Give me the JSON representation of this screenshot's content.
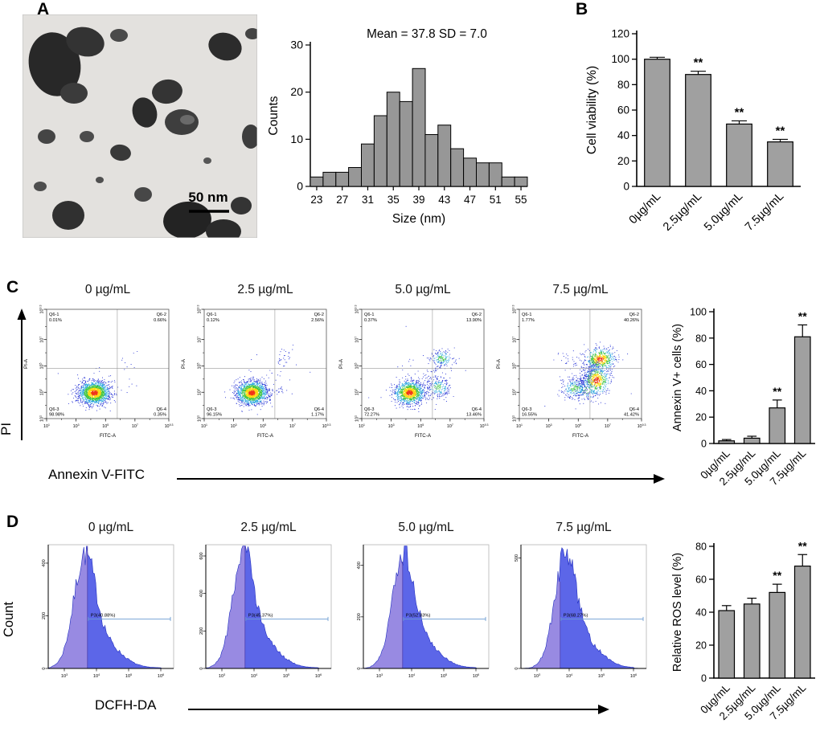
{
  "figure": {
    "panel_labels": [
      "A",
      "B",
      "C",
      "D"
    ],
    "tem_scale_bar": "50 nm",
    "concentrations": [
      "0µg/mL",
      "2.5µg/mL",
      "5.0µg/mL",
      "7.5µg/mL"
    ]
  },
  "chart_data": [
    {
      "id": "size-distribution-histogram",
      "type": "bar",
      "title": "Mean = 37.8  SD = 7.0",
      "xlabel": "Size (nm)",
      "ylabel": "Counts",
      "categories": [
        23,
        25,
        27,
        29,
        31,
        33,
        35,
        37,
        39,
        41,
        43,
        45,
        47,
        49,
        51,
        53,
        55
      ],
      "values": [
        2,
        3,
        3,
        4,
        9,
        15,
        20,
        18,
        25,
        11,
        13,
        8,
        6,
        5,
        5,
        2,
        2
      ],
      "xtick_labels": [
        23,
        27,
        31,
        35,
        39,
        43,
        47,
        51,
        55
      ],
      "ylim": [
        0,
        30
      ],
      "yticks": [
        0,
        10,
        20,
        30
      ],
      "bar_color": "#979797"
    },
    {
      "id": "cell-viability",
      "type": "bar",
      "ylabel": "Cell viability (%)",
      "categories": [
        "0µg/mL",
        "2.5µg/mL",
        "5.0µg/mL",
        "7.5µg/mL"
      ],
      "values": [
        100,
        88,
        49,
        35
      ],
      "errors": [
        1.5,
        2.5,
        2.5,
        2
      ],
      "significance": [
        "",
        "**",
        "**",
        "**"
      ],
      "ylim": [
        0,
        120
      ],
      "yticks": [
        0,
        20,
        40,
        60,
        80,
        100,
        120
      ],
      "bar_color": "#a0a0a0"
    },
    {
      "id": "annexin-pi-flow-quadrants",
      "type": "scatter",
      "xlabel_big": "Annexin V-FITC",
      "ylabel_big": "PI",
      "plot_xlabel": "FITC-A",
      "plot_ylabel": "PI-A",
      "axis_decades": [
        1,
        9.3
      ],
      "tick_exponents": [
        "1",
        "3",
        "5",
        "7",
        "9.3"
      ],
      "quadrant_split_x": 5.8,
      "quadrant_split_y": 4.8,
      "plots": [
        {
          "title": "0 µg/mL",
          "quadrants": [
            {
              "name": "Q6-1",
              "pct": "0.01%"
            },
            {
              "name": "Q6-2",
              "pct": "0.66%"
            },
            {
              "name": "Q6-3",
              "pct": "98.98%"
            },
            {
              "name": "Q6-4",
              "pct": "0.35%"
            }
          ]
        },
        {
          "title": "2.5 µg/mL",
          "quadrants": [
            {
              "name": "Q6-1",
              "pct": "0.12%"
            },
            {
              "name": "Q6-2",
              "pct": "2.56%"
            },
            {
              "name": "Q6-3",
              "pct": "96.15%"
            },
            {
              "name": "Q6-4",
              "pct": "1.17%"
            }
          ]
        },
        {
          "title": "5.0 µg/mL",
          "quadrants": [
            {
              "name": "Q6-1",
              "pct": "0.37%"
            },
            {
              "name": "Q6-2",
              "pct": "13.90%"
            },
            {
              "name": "Q6-3",
              "pct": "72.27%"
            },
            {
              "name": "Q6-4",
              "pct": "13.46%"
            }
          ]
        },
        {
          "title": "7.5 µg/mL",
          "quadrants": [
            {
              "name": "Q6-1",
              "pct": "1.77%"
            },
            {
              "name": "Q6-2",
              "pct": "40.26%"
            },
            {
              "name": "Q6-3",
              "pct": "16.55%"
            },
            {
              "name": "Q6-4",
              "pct": "41.42%"
            }
          ]
        }
      ]
    },
    {
      "id": "annexin-positive-cells",
      "type": "bar",
      "ylabel": "Annexin V+ cells (%)",
      "categories": [
        "0µg/mL",
        "2.5µg/mL",
        "5.0µg/mL",
        "7.5µg/mL"
      ],
      "values": [
        2,
        4,
        27,
        81
      ],
      "errors": [
        1,
        1.5,
        6,
        9
      ],
      "significance": [
        "",
        "",
        "**",
        "**"
      ],
      "ylim": [
        0,
        100
      ],
      "yticks": [
        0,
        20,
        40,
        60,
        80,
        100
      ],
      "bar_color": "#a0a0a0"
    },
    {
      "id": "dcfh-da-ros-histograms",
      "type": "area",
      "xlabel_big": "DCFH-DA",
      "ylabel_big": "Count",
      "axis_decades": [
        2.5,
        6.4
      ],
      "xtick_exponents": [
        3,
        4,
        5,
        6
      ],
      "plots": [
        {
          "title": "0 µg/mL",
          "gate_label": "P3(40.88%)",
          "gate_pct": 40.88,
          "yticks": [
            0,
            200,
            400
          ],
          "ymax": 470,
          "peak": 430
        },
        {
          "title": "2.5 µg/mL",
          "gate_label": "P3(45.37%)",
          "gate_pct": 45.37,
          "yticks": [
            0,
            200,
            400,
            600
          ],
          "ymax": 660,
          "peak": 610
        },
        {
          "title": "5.0 µg/mL",
          "gate_label": "P3(52.83%)",
          "gate_pct": 52.83,
          "yticks": [
            0,
            200,
            400
          ],
          "ymax": 480,
          "peak": 445
        },
        {
          "title": "7.5 µg/mL",
          "gate_label": "P3(68.27%)",
          "gate_pct": 68.27,
          "yticks": [
            0,
            500
          ],
          "ymax": 560,
          "peak": 515
        }
      ]
    },
    {
      "id": "relative-ros-level",
      "type": "bar",
      "ylabel": "Relative ROS level (%)",
      "categories": [
        "0µg/mL",
        "2.5µg/mL",
        "5.0µg/mL",
        "7.5µg/mL"
      ],
      "values": [
        41,
        45,
        52,
        68
      ],
      "errors": [
        3,
        3.5,
        5,
        7
      ],
      "significance": [
        "",
        "",
        "**",
        "**"
      ],
      "ylim": [
        0,
        80
      ],
      "yticks": [
        0,
        20,
        40,
        60,
        80
      ],
      "bar_color": "#a0a0a0"
    }
  ]
}
